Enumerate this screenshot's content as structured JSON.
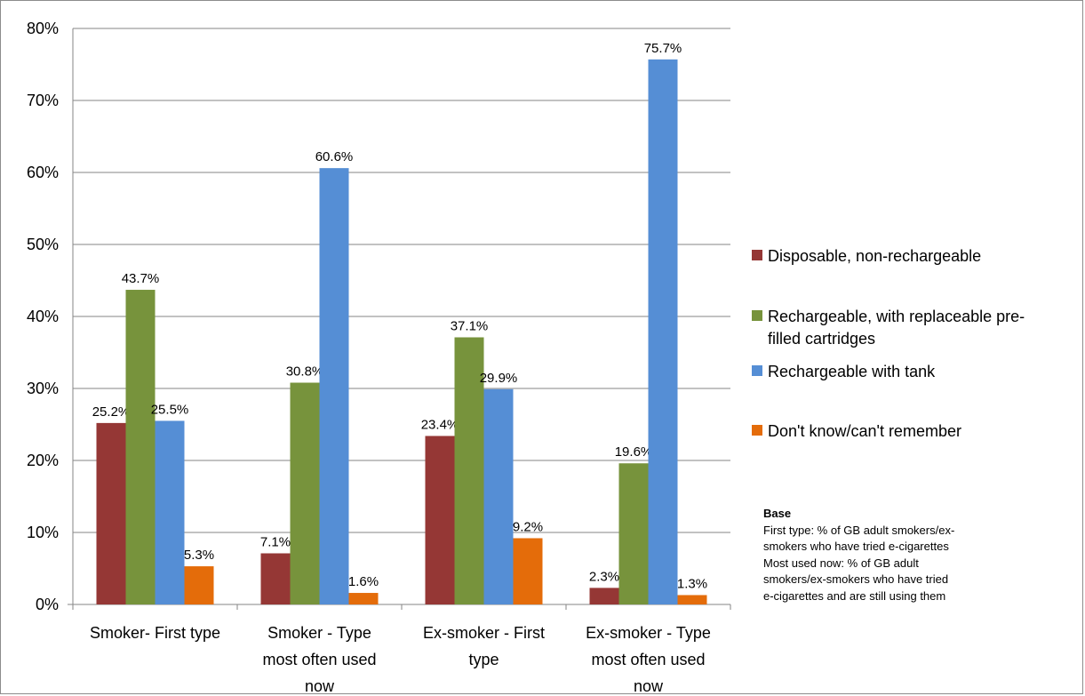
{
  "chart_data": {
    "type": "bar",
    "categories": [
      [
        "Smoker- First type"
      ],
      [
        "Smoker - Type",
        "most often used",
        "now"
      ],
      [
        "Ex-smoker - First",
        "type"
      ],
      [
        "Ex-smoker - Type",
        "most often used",
        "now"
      ]
    ],
    "series": [
      {
        "name": "Disposable, non-rechargeable",
        "color": "#953735",
        "values": [
          25.2,
          7.1,
          23.4,
          2.3
        ],
        "labels": [
          "25.2%",
          "7.1%",
          "23.4%",
          "2.3%"
        ]
      },
      {
        "name": "Rechargeable, with replaceable pre-filled cartridges",
        "color": "#77933c",
        "values": [
          43.7,
          30.8,
          37.1,
          19.6
        ],
        "labels": [
          "43.7%",
          "30.8%",
          "37.1%",
          "19.6%"
        ]
      },
      {
        "name": "Rechargeable with tank",
        "color": "#558ed5",
        "values": [
          25.5,
          60.6,
          29.9,
          75.7
        ],
        "labels": [
          "25.5%",
          "60.6%",
          "29.9%",
          "75.7%"
        ]
      },
      {
        "name": "Don't know/can't remember",
        "color": "#e46c0a",
        "values": [
          5.3,
          1.6,
          9.2,
          1.3
        ],
        "labels": [
          "5.3%",
          "1.6%",
          "9.2%",
          "1.3%"
        ]
      }
    ],
    "legend_lines": [
      [
        "Disposable, non-rechargeable"
      ],
      [
        "Rechargeable, with replaceable pre-",
        "filled cartridges"
      ],
      [
        "Rechargeable with tank"
      ],
      [
        "Don't know/can't remember"
      ]
    ],
    "ylim": [
      0,
      80
    ],
    "yticks": [
      0,
      10,
      20,
      30,
      40,
      50,
      60,
      70,
      80
    ],
    "ytick_labels": [
      "0%",
      "10%",
      "20%",
      "30%",
      "40%",
      "50%",
      "60%",
      "70%",
      "80%"
    ],
    "grid": true,
    "legend_position": "right"
  },
  "note": {
    "title": "Base",
    "lines": [
      "First type: % of GB adult smokers/ex-",
      "smokers who have tried e-cigarettes",
      "Most used now: % of GB adult",
      "smokers/ex-smokers  who have tried",
      "e-cigarettes and are still using them"
    ]
  }
}
